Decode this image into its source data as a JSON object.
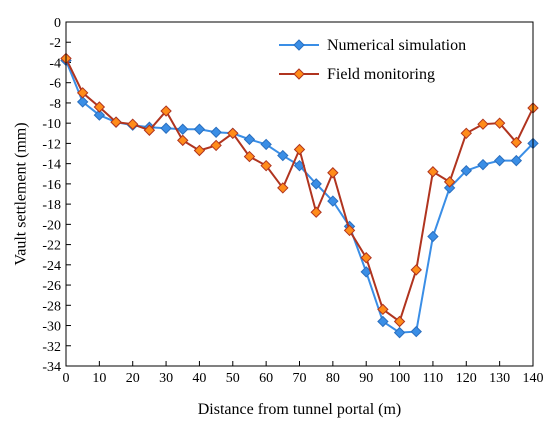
{
  "chart_data": {
    "type": "line",
    "title": "",
    "xlabel": "Distance from tunnel portal (m)",
    "ylabel": "Vault settlement (mm)",
    "xlim": [
      0,
      140
    ],
    "ylim": [
      -34,
      0
    ],
    "xticks": [
      0,
      10,
      20,
      30,
      40,
      50,
      60,
      70,
      80,
      90,
      100,
      110,
      120,
      130,
      140
    ],
    "yticks": [
      0,
      -2,
      -4,
      -6,
      -8,
      -10,
      -12,
      -14,
      -16,
      -18,
      -20,
      -22,
      -24,
      -26,
      -28,
      -30,
      -32,
      -34
    ],
    "grid": false,
    "legend_position": "top-right",
    "x": [
      0,
      5,
      10,
      15,
      20,
      25,
      30,
      35,
      40,
      45,
      50,
      55,
      60,
      65,
      70,
      75,
      80,
      85,
      90,
      95,
      100,
      105,
      110,
      115,
      120,
      125,
      130,
      135,
      140
    ],
    "series": [
      {
        "name": "Numerical simulation",
        "color": "#3a8ee6",
        "marker": "diamond",
        "values": [
          -3.8,
          -7.9,
          -9.2,
          -9.9,
          -10.2,
          -10.4,
          -10.5,
          -10.6,
          -10.6,
          -10.9,
          -11.0,
          -11.6,
          -12.1,
          -13.2,
          -14.2,
          -16.0,
          -17.7,
          -20.2,
          -24.7,
          -29.6,
          -30.7,
          -30.6,
          -21.2,
          -16.4,
          -14.7,
          -14.1,
          -13.7,
          -13.7,
          -12.0
        ]
      },
      {
        "name": "Field monitoring",
        "color": "#ff8c1a",
        "line_color": "#b0341f",
        "marker": "diamond",
        "values": [
          -3.6,
          -7.0,
          -8.4,
          -9.9,
          -10.1,
          -10.7,
          -8.8,
          -11.7,
          -12.7,
          -12.2,
          -11.0,
          -13.3,
          -14.2,
          -16.4,
          -12.6,
          -18.8,
          -14.9,
          -20.6,
          -23.3,
          -28.4,
          -29.6,
          -24.5,
          -14.8,
          -15.8,
          -11.0,
          -10.1,
          -10.0,
          -11.9,
          -8.5
        ]
      }
    ]
  }
}
